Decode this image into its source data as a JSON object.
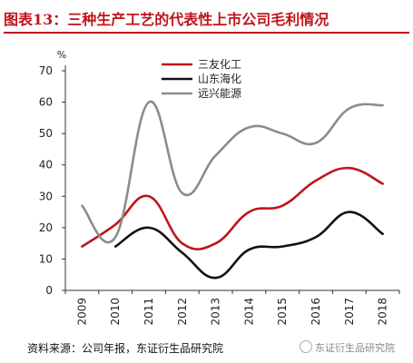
{
  "title": "图表13：三种生产工艺的代表性上市公司毛利情况",
  "source": "资料来源：公司年报，东证衍生品研究院",
  "watermark": "东证衍生品研究院",
  "chart_data": {
    "type": "line",
    "unit": "%",
    "categories": [
      "2009",
      "2010",
      "2011",
      "2012",
      "2013",
      "2014",
      "2015",
      "2016",
      "2017",
      "2018"
    ],
    "ylim": [
      0,
      70
    ],
    "yticks": [
      0,
      10,
      20,
      30,
      40,
      50,
      60,
      70
    ],
    "grid": false,
    "legend_position": "top",
    "series": [
      {
        "name": "三友化工",
        "color": "#c0141b",
        "values": [
          14,
          21,
          30,
          15,
          15,
          25,
          27,
          35,
          39,
          34
        ]
      },
      {
        "name": "山东海化",
        "color": "#111111",
        "values": [
          null,
          14,
          20,
          12,
          4,
          13,
          14,
          17,
          25,
          18
        ]
      },
      {
        "name": "远兴能源",
        "color": "#8c8c8c",
        "values": [
          27,
          17,
          60,
          31,
          43,
          52,
          50,
          47,
          58,
          59
        ]
      }
    ]
  }
}
